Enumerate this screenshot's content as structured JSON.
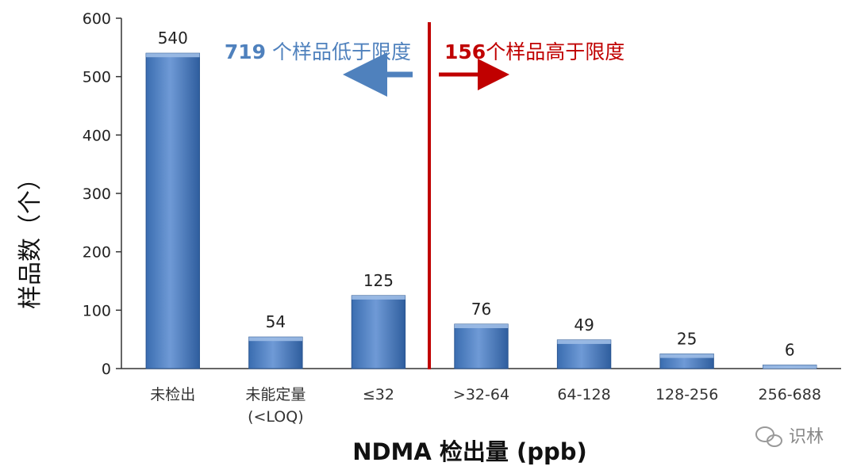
{
  "chart_data": {
    "type": "bar",
    "categories": [
      [
        "未检出"
      ],
      [
        "未能定量",
        "(<LOQ)"
      ],
      [
        "≤32"
      ],
      [
        ">32-64"
      ],
      [
        "64-128"
      ],
      [
        "128-256"
      ],
      [
        "256-688"
      ]
    ],
    "values": [
      540,
      54,
      125,
      76,
      49,
      25,
      6
    ],
    "data_labels": [
      "540",
      "54",
      "125",
      "76",
      "49",
      "25",
      "6"
    ],
    "ylim": [
      0,
      600
    ],
    "yticks": [
      0,
      100,
      200,
      300,
      400,
      500,
      600
    ],
    "ylabel": "样品数（个）",
    "xlabel": "NDMA 检出量 (ppb)",
    "bar_color": "#4f81bd",
    "annotations": {
      "left": {
        "number": "719",
        "text": " 个样品低于限度",
        "color": "#4f81bd"
      },
      "right": {
        "number": "156",
        "text": "个样品高于限度",
        "color": "#c00000"
      }
    },
    "divider_color": "#c00000"
  },
  "watermark": "识林"
}
